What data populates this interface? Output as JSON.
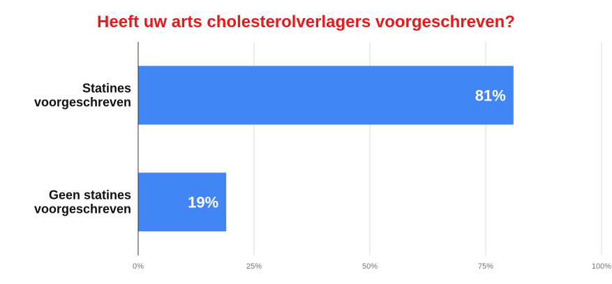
{
  "chart_data": {
    "type": "bar",
    "orientation": "horizontal",
    "title": "Heeft uw arts cholesterolverlagers voorgeschreven?",
    "categories": [
      [
        "Statines",
        "voorgeschreven"
      ],
      [
        "Geen statines",
        "voorgeschreven"
      ]
    ],
    "values": [
      81,
      19
    ],
    "value_labels": [
      "81%",
      "19%"
    ],
    "xlim": [
      0,
      100
    ],
    "x_ticks": [
      0,
      25,
      50,
      75,
      100
    ],
    "x_tick_labels": [
      "0%",
      "25%",
      "50%",
      "75%",
      "100%"
    ],
    "grid": true,
    "colors": {
      "bar": "#4285f4",
      "title": "#e41a1c",
      "grid": "#dddddd",
      "axis": "#333333"
    }
  }
}
